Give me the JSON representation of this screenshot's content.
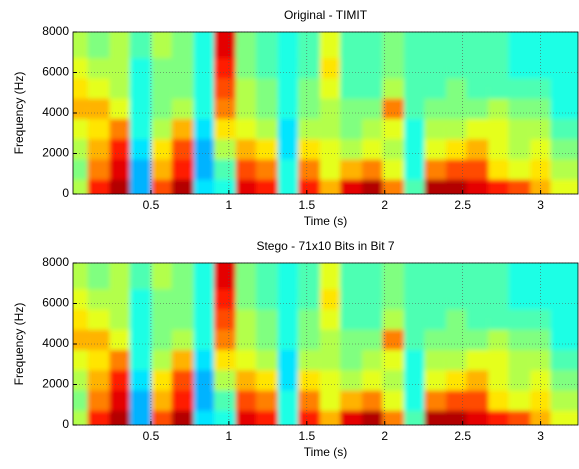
{
  "chart_data": [
    {
      "type": "heatmap",
      "title": "Original - TIMIT",
      "xlabel": "Time (s)",
      "ylabel": "Frequency (Hz)",
      "xlim": [
        0,
        3.24
      ],
      "xticks": [
        0.5,
        1,
        1.5,
        2,
        2.5,
        3
      ],
      "ylim": [
        0,
        8000
      ],
      "yticks": [
        0,
        2000,
        4000,
        6000,
        8000
      ],
      "grid": true,
      "clim": [
        0,
        100
      ],
      "x": [
        0.07,
        0.2,
        0.34,
        0.47,
        0.61,
        0.74,
        0.88,
        1.01,
        1.15,
        1.28,
        1.42,
        1.55,
        1.69,
        1.82,
        1.96,
        2.09,
        2.23,
        2.36,
        2.5,
        2.63,
        2.77,
        2.9,
        3.04,
        3.17
      ],
      "y": [
        500,
        1500,
        2500,
        3500,
        4500,
        5500,
        6500,
        7500
      ],
      "z": [
        [
          55,
          50,
          55,
          60,
          70,
          65,
          60,
          55
        ],
        [
          85,
          75,
          70,
          65,
          70,
          60,
          55,
          50
        ],
        [
          95,
          90,
          85,
          75,
          60,
          55,
          55,
          55
        ],
        [
          30,
          30,
          35,
          40,
          40,
          40,
          40,
          45
        ],
        [
          80,
          70,
          65,
          55,
          50,
          50,
          50,
          55
        ],
        [
          95,
          85,
          80,
          70,
          55,
          50,
          50,
          50
        ],
        [
          35,
          30,
          30,
          35,
          40,
          40,
          40,
          40
        ],
        [
          40,
          45,
          55,
          65,
          75,
          80,
          85,
          90
        ],
        [
          90,
          80,
          70,
          60,
          55,
          55,
          50,
          50
        ],
        [
          85,
          75,
          65,
          55,
          50,
          50,
          45,
          45
        ],
        [
          40,
          40,
          35,
          35,
          40,
          40,
          40,
          40
        ],
        [
          85,
          75,
          65,
          55,
          50,
          50,
          45,
          45
        ],
        [
          70,
          60,
          60,
          55,
          55,
          60,
          65,
          60
        ],
        [
          90,
          70,
          55,
          50,
          50,
          45,
          45,
          45
        ],
        [
          95,
          75,
          60,
          55,
          50,
          45,
          45,
          45
        ],
        [
          75,
          60,
          55,
          60,
          75,
          55,
          50,
          50
        ],
        [
          45,
          40,
          40,
          40,
          45,
          45,
          45,
          45
        ],
        [
          95,
          75,
          60,
          55,
          50,
          45,
          45,
          45
        ],
        [
          95,
          80,
          65,
          55,
          50,
          50,
          45,
          45
        ],
        [
          90,
          80,
          70,
          60,
          50,
          45,
          45,
          45
        ],
        [
          85,
          65,
          60,
          60,
          55,
          45,
          45,
          45
        ],
        [
          80,
          60,
          55,
          55,
          50,
          45,
          40,
          40
        ],
        [
          70,
          65,
          60,
          55,
          50,
          45,
          40,
          40
        ],
        [
          60,
          55,
          50,
          45,
          40,
          40,
          40,
          40
        ]
      ]
    },
    {
      "type": "heatmap",
      "title": "Stego - 71x10 Bits in Bit 7",
      "xlabel": "Time (s)",
      "ylabel": "Frequency (Hz)",
      "xlim": [
        0,
        3.24
      ],
      "xticks": [
        0.5,
        1,
        1.5,
        2,
        2.5,
        3
      ],
      "ylim": [
        0,
        8000
      ],
      "yticks": [
        0,
        2000,
        4000,
        6000,
        8000
      ],
      "grid": true,
      "clim": [
        0,
        100
      ],
      "x": [
        0.07,
        0.2,
        0.34,
        0.47,
        0.61,
        0.74,
        0.88,
        1.01,
        1.15,
        1.28,
        1.42,
        1.55,
        1.69,
        1.82,
        1.96,
        2.09,
        2.23,
        2.36,
        2.5,
        2.63,
        2.77,
        2.9,
        3.04,
        3.17
      ],
      "y": [
        500,
        1500,
        2500,
        3500,
        4500,
        5500,
        6500,
        7500
      ],
      "z": [
        [
          55,
          50,
          55,
          60,
          70,
          65,
          60,
          55
        ],
        [
          85,
          75,
          70,
          65,
          70,
          60,
          55,
          50
        ],
        [
          95,
          90,
          85,
          75,
          60,
          55,
          55,
          55
        ],
        [
          30,
          30,
          35,
          40,
          40,
          40,
          40,
          45
        ],
        [
          80,
          70,
          65,
          55,
          50,
          50,
          50,
          55
        ],
        [
          95,
          85,
          80,
          70,
          55,
          50,
          50,
          50
        ],
        [
          35,
          30,
          30,
          35,
          40,
          40,
          40,
          40
        ],
        [
          40,
          45,
          55,
          65,
          75,
          80,
          85,
          90
        ],
        [
          90,
          80,
          70,
          60,
          55,
          55,
          50,
          50
        ],
        [
          85,
          75,
          65,
          55,
          50,
          50,
          45,
          45
        ],
        [
          40,
          40,
          35,
          35,
          40,
          40,
          40,
          40
        ],
        [
          85,
          75,
          65,
          55,
          50,
          50,
          45,
          45
        ],
        [
          70,
          60,
          60,
          55,
          55,
          60,
          65,
          60
        ],
        [
          90,
          70,
          55,
          50,
          50,
          45,
          45,
          45
        ],
        [
          95,
          75,
          60,
          55,
          50,
          45,
          45,
          45
        ],
        [
          75,
          60,
          55,
          60,
          75,
          55,
          50,
          50
        ],
        [
          45,
          40,
          40,
          40,
          45,
          45,
          45,
          45
        ],
        [
          95,
          75,
          60,
          55,
          50,
          45,
          45,
          45
        ],
        [
          95,
          80,
          65,
          55,
          50,
          50,
          45,
          45
        ],
        [
          90,
          80,
          70,
          60,
          50,
          45,
          45,
          45
        ],
        [
          85,
          65,
          60,
          60,
          55,
          45,
          45,
          45
        ],
        [
          80,
          60,
          55,
          55,
          50,
          45,
          40,
          40
        ],
        [
          70,
          65,
          60,
          55,
          50,
          45,
          40,
          40
        ],
        [
          60,
          55,
          50,
          45,
          40,
          40,
          40,
          40
        ]
      ]
    }
  ]
}
